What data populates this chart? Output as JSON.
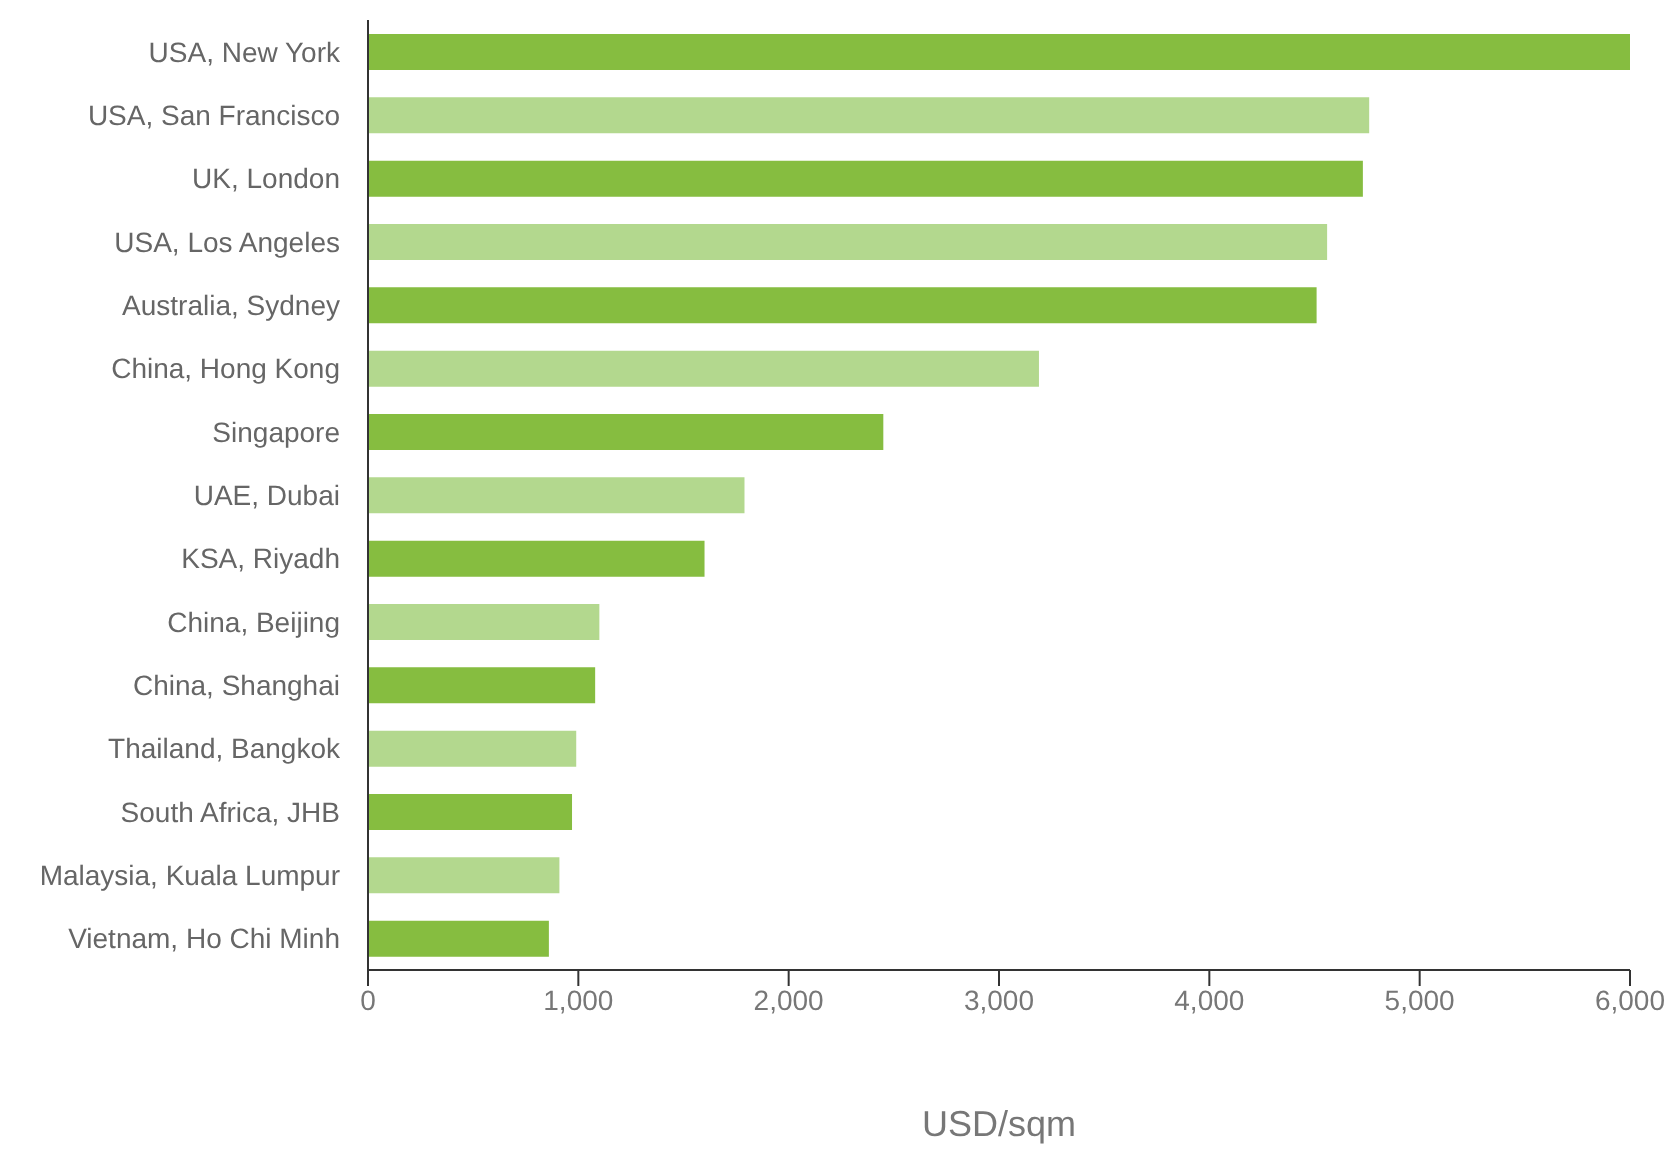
{
  "chart_data": {
    "type": "bar",
    "orientation": "horizontal",
    "xlabel": "USD/sqm",
    "categories": [
      "USA, New York",
      "USA, San Francisco",
      "UK, London",
      "USA, Los Angeles",
      "Australia, Sydney",
      "China, Hong Kong",
      "Singapore",
      "UAE, Dubai",
      "KSA, Riyadh",
      "China, Beijing",
      "China, Shanghai",
      "Thailand, Bangkok",
      "South Africa, JHB",
      "Malaysia, Kuala Lumpur",
      "Vietnam, Ho Chi Minh"
    ],
    "values": [
      6000,
      4760,
      4730,
      4560,
      4510,
      3190,
      2450,
      1790,
      1600,
      1100,
      1080,
      990,
      970,
      910,
      860
    ],
    "colors": [
      "#86bd40",
      "#b3d88e",
      "#86bd40",
      "#b3d88e",
      "#86bd40",
      "#b3d88e",
      "#86bd40",
      "#b3d88e",
      "#86bd40",
      "#b3d88e",
      "#86bd40",
      "#b3d88e",
      "#86bd40",
      "#b3d88e",
      "#86bd40"
    ],
    "xlim": [
      0,
      6000
    ],
    "xticks": [
      {
        "value": 0,
        "label": "0"
      },
      {
        "value": 1000,
        "label": "1,000"
      },
      {
        "value": 2000,
        "label": "2,000"
      },
      {
        "value": 3000,
        "label": "3,000"
      },
      {
        "value": 4000,
        "label": "4,000"
      },
      {
        "value": 5000,
        "label": "5,000"
      },
      {
        "value": 6000,
        "label": "6,000"
      }
    ],
    "grid": false,
    "legend": false
  }
}
